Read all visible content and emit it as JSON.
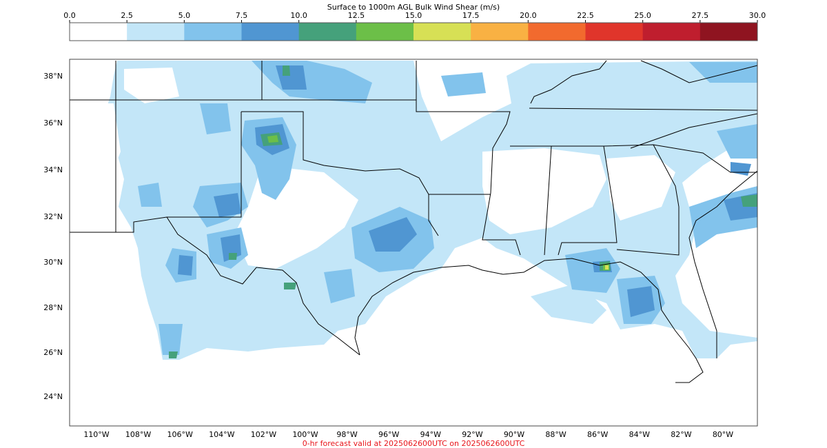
{
  "title": "Surface to 1000m AGL Bulk Wind Shear (m/s)",
  "footer": "0-hr forecast valid at 2025062600UTC on 2025062600UTC",
  "colorbar": {
    "ticks": [
      "0.0",
      "2.5",
      "5.0",
      "7.5",
      "10.0",
      "12.5",
      "15.0",
      "17.5",
      "20.0",
      "22.5",
      "25.0",
      "27.5",
      "30.0"
    ],
    "colors": [
      "#ffffff",
      "#c3e6f8",
      "#82c3ec",
      "#5096d2",
      "#45a17b",
      "#6cbf48",
      "#d7e055",
      "#f9b143",
      "#f26a2e",
      "#e0352b",
      "#bf1e2e",
      "#8f1420"
    ]
  },
  "map": {
    "lat_labels": [
      "38°N",
      "36°N",
      "34°N",
      "32°N",
      "30°N",
      "28°N",
      "26°N",
      "24°N"
    ],
    "lon_labels": [
      "110°W",
      "108°W",
      "106°W",
      "104°W",
      "102°W",
      "100°W",
      "98°W",
      "96°W",
      "94°W",
      "92°W",
      "90°W",
      "88°W",
      "86°W",
      "84°W",
      "82°W",
      "80°W"
    ]
  }
}
